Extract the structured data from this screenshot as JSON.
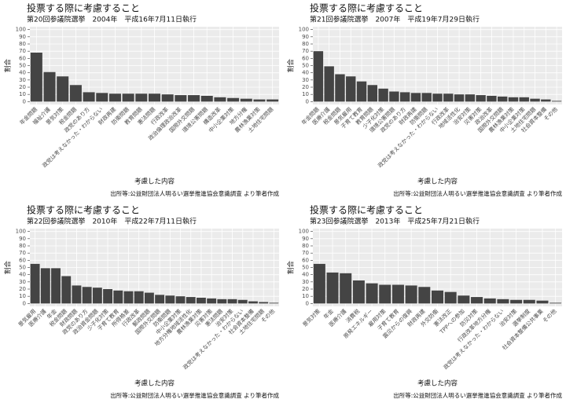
{
  "chart_data": [
    {
      "type": "bar",
      "title": "投票する際に考慮すること",
      "subtitle": "第20回参議院選挙　2004年　平成16年7月11日執行",
      "x_label": "考慮した内容",
      "y_label": "割合",
      "caption": "出所等:公益財団法人明るい選挙推進協会意識調査 より筆者作成",
      "categories": [
        "年金問題",
        "福祉介護",
        "景気対策",
        "税金問題",
        "政党のあり方",
        "政党は考えなかった・わからない",
        "財政再建",
        "防衛問題",
        "教育問題",
        "憲法問題",
        "行政改革",
        "政治倫理政治改革",
        "国際外交問題",
        "環境公害問題",
        "構造改革",
        "中小企業対策",
        "地方分権",
        "農林漁業対策",
        "土地住宅問題"
      ],
      "values": [
        68,
        41,
        35,
        23,
        13,
        12,
        11,
        11,
        11,
        11,
        10,
        9,
        9,
        8,
        6,
        5,
        4,
        3,
        3
      ],
      "color": "#444444",
      "ylim": [
        -4,
        104
      ],
      "yticks": [
        0,
        10,
        20,
        30,
        40,
        50,
        60,
        70,
        80,
        90,
        100
      ],
      "grid": true
    },
    {
      "type": "bar",
      "title": "投票する際に考慮すること",
      "subtitle": "第21回参議院選挙　2007年　平成19年7月29日執行",
      "x_label": "考慮した内容",
      "y_label": "割合",
      "caption": "出所等:公益財団法人明るい選挙推進協会意識調査 より筆者作成",
      "categories": [
        "年金問題",
        "医療介護",
        "税金問題",
        "景気雇用",
        "子育て教育",
        "教育問題",
        "少子化対策",
        "環境公害問題",
        "政党のあり方",
        "財政再建",
        "防衛問題",
        "政党は考えなかった・わからない",
        "行政改革",
        "地域活性化",
        "治安対策",
        "災害対策",
        "政治改革",
        "国際外交問題",
        "農林漁業対策",
        "中小企業対策",
        "土地住宅問題",
        "社会資本整備",
        "その他"
      ],
      "values": [
        70,
        49,
        38,
        35,
        28,
        23,
        18,
        14,
        13,
        12,
        12,
        11,
        11,
        10,
        10,
        9,
        8,
        7,
        6,
        6,
        4,
        3,
        1
      ],
      "color": "#444444",
      "ylim": [
        -4,
        104
      ],
      "yticks": [
        0,
        10,
        20,
        30,
        40,
        50,
        60,
        70,
        80,
        90,
        100
      ],
      "grid": true
    },
    {
      "type": "bar",
      "title": "投票する際に考慮すること",
      "subtitle": "第22回参議院選挙　2010年　平成22年7月11日執行",
      "x_label": "考慮した内容",
      "y_label": "割合",
      "caption": "出所等:公益財団法人明るい選挙推進協会意識調査 より筆者作成",
      "categories": [
        "景気雇用",
        "医療介護",
        "年金",
        "税金問題",
        "財政問題",
        "政党のあり方",
        "政治資金問題",
        "少子化対策",
        "子育て教育",
        "所得格差",
        "行政改革",
        "郵政問題",
        "国際外交問題",
        "防衛問題",
        "中小企業対策",
        "地方分権地域活性化",
        "農林漁業対策",
        "災害対策",
        "憲法問題",
        "治安対策",
        "政党は考えなかった・わからない",
        "社会資本整備",
        "土地住宅問題",
        "その他"
      ],
      "values": [
        55,
        49,
        49,
        38,
        25,
        23,
        22,
        20,
        18,
        17,
        17,
        15,
        12,
        11,
        10,
        9,
        8,
        7,
        6,
        6,
        5,
        3,
        2,
        1
      ],
      "color": "#444444",
      "ylim": [
        -4,
        104
      ],
      "yticks": [
        0,
        10,
        20,
        30,
        40,
        50,
        60,
        70,
        80,
        90,
        100
      ],
      "grid": true
    },
    {
      "type": "bar",
      "title": "投票する際に考慮すること",
      "subtitle": "第23回参議院選挙　2013年　平成25年7月21日執行",
      "x_label": "考慮した内容",
      "y_label": "割合",
      "caption": "出所等:公益財団法人明るい選挙推進協会意識調査 より筆者作成",
      "categories": [
        "景気対策",
        "年金",
        "医療介護",
        "消費税",
        "原発エネルギー",
        "雇用対策",
        "子育て教育",
        "震災からの復興",
        "財政再建",
        "外交防衛",
        "憲法改正",
        "TPPへの参加",
        "防災対策",
        "行政改革地方分権",
        "政党は考えなかった・わからない",
        "治安対策",
        "選挙制度",
        "社会資本整備公共事業",
        "その他"
      ],
      "values": [
        55,
        43,
        42,
        32,
        28,
        26,
        26,
        25,
        23,
        18,
        16,
        11,
        9,
        7,
        6,
        5,
        5,
        4,
        1
      ],
      "color": "#444444",
      "ylim": [
        -4,
        104
      ],
      "yticks": [
        0,
        10,
        20,
        30,
        40,
        50,
        60,
        70,
        80,
        90,
        100
      ],
      "grid": true
    }
  ]
}
